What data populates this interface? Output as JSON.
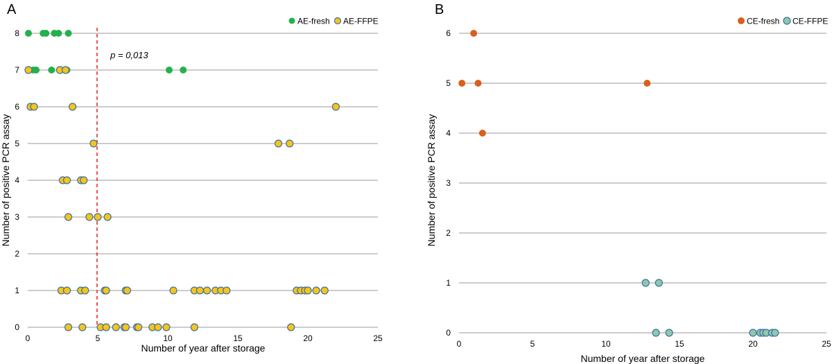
{
  "colors": {
    "ae_fresh": "#22b14c",
    "ae_ffpe": "#f5c518",
    "ce_fresh": "#d9601c",
    "ce_ffpe": "#8fc9a8",
    "point_stroke": "#3d6ea8",
    "grid": "#999999",
    "threshold": "#e0201e"
  },
  "chart_data": [
    {
      "panel_label": "A",
      "type": "scatter",
      "xlabel": "Number of year after storage",
      "ylabel": "Number of positive PCR assay",
      "xlim": [
        0,
        25
      ],
      "ylim": [
        0,
        8
      ],
      "xticks": [
        0,
        5,
        10,
        15,
        20,
        25
      ],
      "yticks": [
        0,
        1,
        2,
        3,
        4,
        5,
        6,
        7,
        8
      ],
      "grid": true,
      "legend_position": "top-right",
      "annotation": {
        "text": "p = 0,013",
        "x": 5.9,
        "y": 7.4
      },
      "threshold_x": 4.95,
      "series": [
        {
          "name": "AE-fresh",
          "color": "#22b14c",
          "outlined": false,
          "points": [
            [
              0.05,
              8
            ],
            [
              1.1,
              8
            ],
            [
              1.3,
              8
            ],
            [
              1.9,
              8
            ],
            [
              2.2,
              8
            ],
            [
              2.9,
              8
            ],
            [
              0.4,
              7
            ],
            [
              0.6,
              7
            ],
            [
              1.7,
              7
            ],
            [
              2.8,
              7
            ],
            [
              10.1,
              7
            ],
            [
              11.1,
              7
            ]
          ]
        },
        {
          "name": "AE-FFPE",
          "color": "#f5c518",
          "outlined": true,
          "points": [
            [
              0.05,
              7
            ],
            [
              2.3,
              7
            ],
            [
              2.7,
              7
            ],
            [
              0.2,
              6
            ],
            [
              0.45,
              6
            ],
            [
              3.2,
              6
            ],
            [
              22.0,
              6
            ],
            [
              4.7,
              5
            ],
            [
              17.9,
              5
            ],
            [
              18.7,
              5
            ],
            [
              2.5,
              4
            ],
            [
              2.8,
              4
            ],
            [
              3.8,
              4
            ],
            [
              4.0,
              4
            ],
            [
              2.9,
              3
            ],
            [
              4.4,
              3
            ],
            [
              5.0,
              3
            ],
            [
              5.7,
              3
            ],
            [
              2.4,
              1
            ],
            [
              2.8,
              1
            ],
            [
              3.8,
              1
            ],
            [
              4.1,
              1
            ],
            [
              5.5,
              1
            ],
            [
              5.6,
              1
            ],
            [
              7.0,
              1
            ],
            [
              7.1,
              1
            ],
            [
              10.4,
              1
            ],
            [
              11.9,
              1
            ],
            [
              12.3,
              1
            ],
            [
              12.8,
              1
            ],
            [
              13.4,
              1
            ],
            [
              13.8,
              1
            ],
            [
              14.2,
              1
            ],
            [
              19.2,
              1
            ],
            [
              19.5,
              1
            ],
            [
              19.8,
              1
            ],
            [
              20.0,
              1
            ],
            [
              20.6,
              1
            ],
            [
              21.2,
              1
            ],
            [
              2.9,
              0
            ],
            [
              3.9,
              0
            ],
            [
              5.2,
              0
            ],
            [
              5.6,
              0
            ],
            [
              6.3,
              0
            ],
            [
              6.9,
              0
            ],
            [
              7.0,
              0
            ],
            [
              7.8,
              0
            ],
            [
              7.9,
              0
            ],
            [
              8.9,
              0
            ],
            [
              9.3,
              0
            ],
            [
              9.9,
              0
            ],
            [
              11.9,
              0
            ],
            [
              18.8,
              0
            ]
          ]
        }
      ]
    },
    {
      "panel_label": "B",
      "type": "scatter",
      "xlabel": "Number of year after storage",
      "ylabel": "Number of positive PCR assay",
      "xlim": [
        0,
        25
      ],
      "ylim": [
        0,
        6
      ],
      "xticks": [
        0,
        5,
        10,
        15,
        20,
        25
      ],
      "yticks": [
        0,
        1,
        2,
        3,
        4,
        5,
        6
      ],
      "grid": true,
      "legend_position": "top-right",
      "series": [
        {
          "name": "CE-fresh",
          "color": "#d9601c",
          "outlined": false,
          "points": [
            [
              1.0,
              6
            ],
            [
              0.2,
              5
            ],
            [
              1.3,
              5
            ],
            [
              12.8,
              5
            ],
            [
              1.6,
              4
            ]
          ]
        },
        {
          "name": "CE-FFPE",
          "color": "#8fc9a8",
          "outlined": true,
          "points": [
            [
              12.7,
              1
            ],
            [
              13.6,
              1
            ],
            [
              13.4,
              0
            ],
            [
              14.3,
              0
            ],
            [
              20.0,
              0
            ],
            [
              20.5,
              0
            ],
            [
              20.7,
              0
            ],
            [
              20.9,
              0
            ],
            [
              21.3,
              0
            ],
            [
              21.5,
              0
            ]
          ]
        }
      ]
    }
  ]
}
